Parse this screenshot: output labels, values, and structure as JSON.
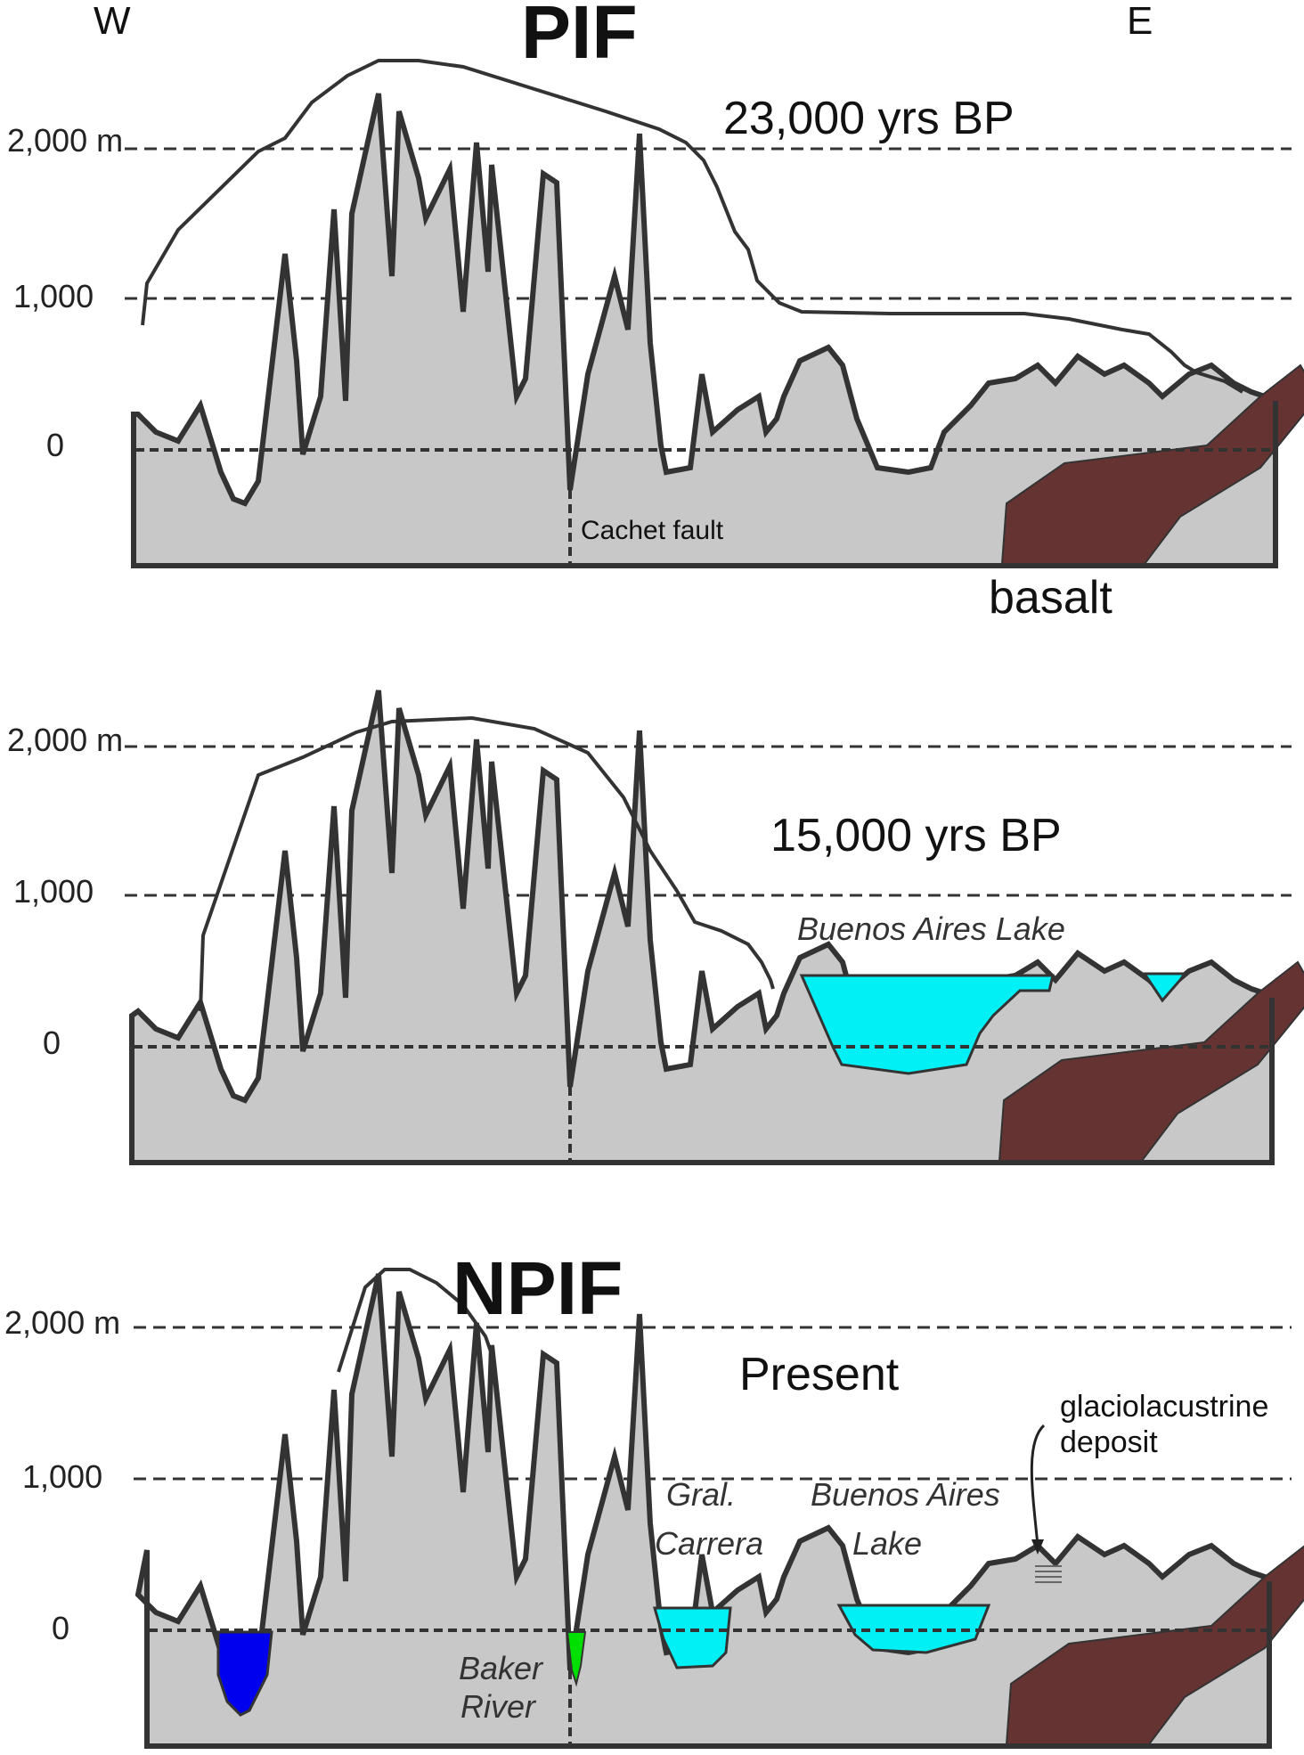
{
  "header": {
    "west": "W",
    "east": "E",
    "pif": "PIF",
    "npif": "NPIF"
  },
  "panels": [
    {
      "period": "23,000 yrs BP",
      "axis": [
        "2,000 m",
        "1,000",
        "0"
      ],
      "labels": {
        "fault": "Cachet fault",
        "basalt": "basalt"
      }
    },
    {
      "period": "15,000 yrs BP",
      "axis": [
        "2,000 m",
        "1,000",
        "0"
      ],
      "labels": {
        "lake": "Buenos Aires Lake"
      }
    },
    {
      "period": "Present",
      "axis": [
        "2,000 m",
        "1,000",
        "0"
      ],
      "labels": {
        "deposit_line1": "glaciolacustrine",
        "deposit_line2": "deposit",
        "carrera_line1": "Gral.",
        "carrera_line2": "Carrera",
        "bal_line1": "Buenos Aires",
        "bal_line2": "Lake",
        "baker_line1": "Baker",
        "baker_line2": "River"
      }
    }
  ],
  "colors": {
    "rock": "#c8c8c8",
    "basalt": "#663333",
    "lake_cyan": "#00f0f5",
    "lake_blue": "#0000ee",
    "river_green": "#00e000",
    "outline": "#333333"
  }
}
